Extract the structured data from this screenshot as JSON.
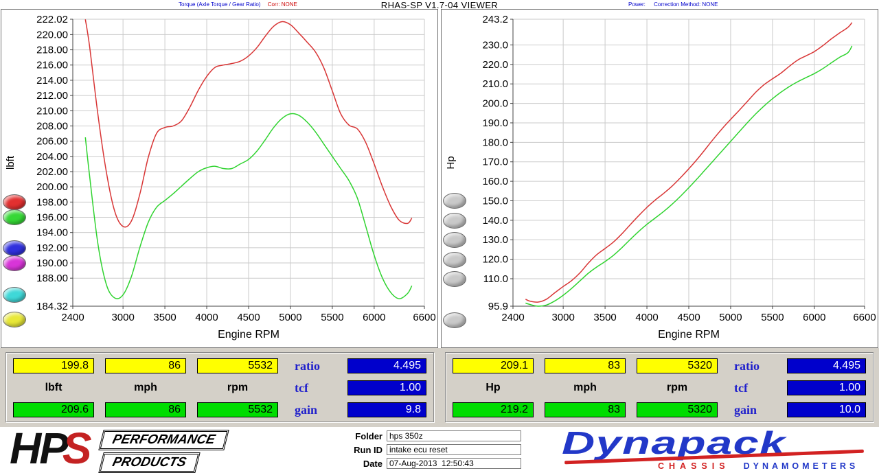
{
  "title": "RHAS-SP V1.7-04  VIEWER",
  "header": {
    "torque_label": "Torque (Axle Torque / Gear Ratio)",
    "torque_corr": "Corr: NONE",
    "power_label": "Power:",
    "power_corr": "Correction Method: NONE"
  },
  "colors": {
    "run1_red": "#d83535",
    "run2_green": "#2fd32f",
    "yellow_box": "#ffff00",
    "green_box": "#00dd00",
    "blue_box": "#0000cc",
    "panel_gray": "#d4d0c8",
    "accent_blue": "#2020cc",
    "logo_red": "#d22222",
    "logo_blue": "#2238c8"
  },
  "chart_data": [
    {
      "type": "line",
      "title": "Torque",
      "xlabel": "Engine RPM",
      "ylabel": "lbft",
      "xlim": [
        2400,
        6600
      ],
      "ylim": [
        184.32,
        222.02
      ],
      "grid": true,
      "legend_position": "left",
      "x_ticks": [
        2400,
        3000,
        3500,
        4000,
        4500,
        5000,
        5500,
        6000,
        6600
      ],
      "y_tick_values": [
        222.02,
        220,
        218,
        216,
        214,
        212,
        210,
        208,
        206,
        204,
        202,
        200,
        198,
        196,
        194,
        192,
        190,
        188,
        184.32
      ],
      "y_tick_labels": [
        "222.02",
        "220.00",
        "218.00",
        "216.00",
        "214.00",
        "212.00",
        "210.00",
        "208.00",
        "206.00",
        "204.00",
        "202.00",
        "200.00",
        "198.00",
        "196.00",
        "194.00",
        "192.00",
        "190.00",
        "188.00",
        "184.32"
      ],
      "x": [
        2550,
        2600,
        2700,
        2800,
        2900,
        3000,
        3100,
        3200,
        3300,
        3400,
        3500,
        3600,
        3700,
        3800,
        3900,
        4000,
        4100,
        4200,
        4300,
        4400,
        4500,
        4600,
        4700,
        4800,
        4900,
        5000,
        5100,
        5200,
        5300,
        5400,
        5500,
        5600,
        5700,
        5800,
        5900,
        6000,
        6100,
        6200,
        6300,
        6400,
        6450
      ],
      "series": [
        {
          "name": "run-1-red",
          "color": "#d83535",
          "values": [
            222.0,
            218.5,
            209.5,
            202.0,
            196.8,
            194.8,
            195.5,
            199.0,
            203.8,
            207.0,
            207.8,
            208.0,
            208.7,
            210.5,
            212.7,
            214.5,
            215.7,
            216.0,
            216.2,
            216.5,
            217.2,
            218.3,
            219.8,
            221.1,
            221.7,
            221.3,
            220.2,
            219.0,
            217.7,
            215.6,
            212.6,
            209.6,
            208.1,
            207.6,
            205.8,
            203.0,
            200.0,
            197.4,
            195.6,
            195.2,
            195.9
          ]
        },
        {
          "name": "run-2-green",
          "color": "#2fd32f",
          "values": [
            206.5,
            201.5,
            192.5,
            187.2,
            185.4,
            185.8,
            188.2,
            192.0,
            195.3,
            197.3,
            198.2,
            199.1,
            200.1,
            201.1,
            202.0,
            202.5,
            202.7,
            202.4,
            202.4,
            203.0,
            203.6,
            204.7,
            206.2,
            207.8,
            209.0,
            209.6,
            209.4,
            208.5,
            207.2,
            205.6,
            204.0,
            202.4,
            200.8,
            198.5,
            194.8,
            191.0,
            188.0,
            186.1,
            185.3,
            186.0,
            187.0
          ]
        }
      ],
      "legend_buttons": [
        {
          "name": "red",
          "color": "#e23030"
        },
        {
          "name": "green",
          "color": "#35d835"
        },
        {
          "name": "blue",
          "color": "#3030dd"
        },
        {
          "name": "magenta",
          "color": "#d835d8"
        },
        {
          "name": "cyan",
          "color": "#3fd8d8"
        },
        {
          "name": "yellow",
          "color": "#e8e838"
        }
      ]
    },
    {
      "type": "line",
      "title": "Power",
      "xlabel": "Engine RPM",
      "ylabel": "Hp",
      "xlim": [
        2400,
        6600
      ],
      "ylim": [
        95.9,
        243.2
      ],
      "grid": true,
      "legend_position": "left",
      "x_ticks": [
        2400,
        3000,
        3500,
        4000,
        4500,
        5000,
        5500,
        6000,
        6600
      ],
      "y_tick_values": [
        243.2,
        230,
        220,
        210,
        200,
        190,
        180,
        170,
        160,
        150,
        140,
        130,
        120,
        110,
        95.9
      ],
      "y_tick_labels": [
        "243.2",
        "230.0",
        "220.0",
        "210.0",
        "200.0",
        "190.0",
        "180.0",
        "170.0",
        "160.0",
        "150.0",
        "140.0",
        "130.0",
        "120.0",
        "110.0",
        "95.9"
      ],
      "x": [
        2550,
        2600,
        2700,
        2800,
        2900,
        3000,
        3100,
        3200,
        3300,
        3400,
        3500,
        3600,
        3700,
        3800,
        3900,
        4000,
        4100,
        4200,
        4300,
        4400,
        4500,
        4600,
        4700,
        4800,
        4900,
        5000,
        5100,
        5200,
        5300,
        5400,
        5500,
        5600,
        5700,
        5800,
        5900,
        6000,
        6100,
        6200,
        6300,
        6400,
        6450
      ],
      "series": [
        {
          "name": "run-1-red",
          "color": "#d83535",
          "values": [
            99.5,
            98.5,
            98.0,
            99.5,
            102.8,
            106.0,
            109.0,
            113.0,
            118.0,
            122.3,
            125.5,
            128.8,
            133.0,
            137.7,
            142.3,
            146.6,
            150.4,
            153.8,
            157.5,
            161.8,
            166.4,
            171.3,
            176.6,
            182.0,
            187.1,
            191.8,
            196.3,
            201.0,
            205.7,
            209.6,
            212.6,
            215.5,
            219.0,
            222.2,
            224.4,
            226.6,
            229.6,
            233.0,
            236.1,
            239.0,
            241.5
          ]
        },
        {
          "name": "run-2-green",
          "color": "#2fd32f",
          "values": [
            97.5,
            96.8,
            95.9,
            96.5,
            98.6,
            101.5,
            105.0,
            108.9,
            112.8,
            116.0,
            118.8,
            122.0,
            125.9,
            130.1,
            134.2,
            137.9,
            141.2,
            144.5,
            148.2,
            152.3,
            156.7,
            161.3,
            166.1,
            170.9,
            175.7,
            180.5,
            185.3,
            190.1,
            194.6,
            198.7,
            202.4,
            205.7,
            208.6,
            211.1,
            213.2,
            215.3,
            217.8,
            220.7,
            223.6,
            226.0,
            229.5
          ]
        }
      ],
      "legend_buttons": [
        {
          "name": "gray-1",
          "color": "#c9c9c9"
        },
        {
          "name": "gray-2",
          "color": "#c9c9c9"
        },
        {
          "name": "gray-3",
          "color": "#c9c9c9"
        },
        {
          "name": "gray-4",
          "color": "#c9c9c9"
        },
        {
          "name": "gray-5",
          "color": "#c9c9c9"
        },
        {
          "name": "gray-6",
          "color": "#c9c9c9"
        }
      ]
    }
  ],
  "readouts": {
    "torque": {
      "row1": [
        "199.8",
        "86",
        "5532"
      ],
      "units": [
        "lbft",
        "mph",
        "rpm"
      ],
      "row2": [
        "209.6",
        "86",
        "5532"
      ],
      "stats": [
        {
          "label": "ratio",
          "value": "4.495"
        },
        {
          "label": "tcf",
          "value": "1.00"
        },
        {
          "label": "gain",
          "value": "9.8"
        }
      ]
    },
    "power": {
      "row1": [
        "209.1",
        "83",
        "5320"
      ],
      "units": [
        "Hp",
        "mph",
        "rpm"
      ],
      "row2": [
        "219.2",
        "83",
        "5320"
      ],
      "stats": [
        {
          "label": "ratio",
          "value": "4.495"
        },
        {
          "label": "tcf",
          "value": "1.00"
        },
        {
          "label": "gain",
          "value": "10.0"
        }
      ]
    }
  },
  "footer": {
    "hps": {
      "hp": "HP",
      "s": "S",
      "line1": "PERFORMANCE",
      "line2": "PRODUCTS"
    },
    "form": {
      "folder_label": "Folder",
      "folder_value": "hps 350z",
      "runid_label": "Run ID",
      "runid_value": "intake ecu reset",
      "date_label": "Date",
      "date_value": "07-Aug-2013  12:50:43"
    },
    "dynapack": {
      "name": "Dynapack",
      "sub1": "CHASSIS",
      "sub2": "DYNAMOMETERS"
    }
  }
}
